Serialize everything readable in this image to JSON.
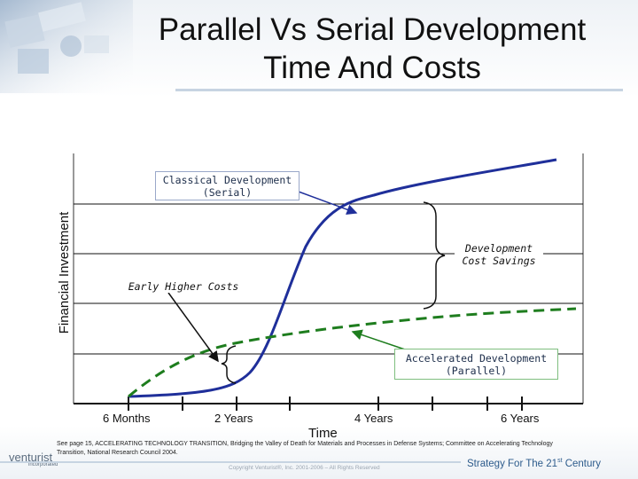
{
  "title": {
    "line1": "Parallel Vs Serial Development",
    "line2": "Time And Costs"
  },
  "axes": {
    "ylabel": "Financial Investment",
    "xlabel": "Time",
    "ticks": [
      "6 Months",
      "2 Years",
      "4 Years",
      "6 Years"
    ]
  },
  "callouts": {
    "serial": [
      "Classical Development",
      "(Serial)"
    ],
    "savings": [
      "Development",
      "Cost Savings"
    ],
    "early": "Early Higher Costs",
    "parallel": [
      "Accelerated Development",
      "(Parallel)"
    ]
  },
  "curves": {
    "serial_color": "#1f2f9a",
    "parallel_color": "#1e7d1e"
  },
  "footer": {
    "citation": "See page 15, ACCELERATING TECHNOLOGY TRANSITION, Bridging the Valley of Death for Materials and Processes in Defense Systems; Committee on Accelerating Technology Transition, National Research Council 2004.",
    "copyright": "Copyright Venturist®, Inc. 2001-2006 – All Rights Reserved",
    "tagline_main": "Strategy For The 21",
    "tagline_sup": "st",
    "tagline_end": " Century",
    "logo_name": "venturist",
    "logo_sub": "incorporated"
  }
}
